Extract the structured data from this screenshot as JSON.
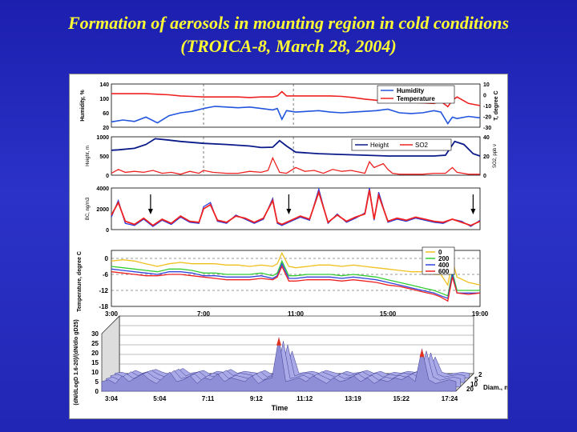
{
  "slide": {
    "title_line1": "Formation of aerosols in mounting region in cold conditions",
    "title_line2": "(TROICA-8, March 28, 2004)"
  },
  "colors": {
    "background": "#2228b8",
    "title": "#ffff33"
  },
  "chart_data": [
    {
      "type": "line",
      "name": "humidity-temperature",
      "ylabel": "Humidity, %",
      "y2label": "T, degree C",
      "yticks": [
        "140",
        "100",
        "60",
        "20"
      ],
      "y2ticks": [
        "10",
        "0",
        "-10",
        "-20",
        "-30"
      ],
      "ylim": [
        20,
        140
      ],
      "y2lim": [
        -30,
        10
      ],
      "xlim": [
        3,
        19
      ],
      "legend_position": "top-right",
      "series": [
        {
          "name": "Humidity",
          "axis": "left",
          "color": "#2255dd",
          "x": [
            3,
            3.5,
            4,
            4.5,
            5,
            5.5,
            6,
            6.5,
            7,
            7.5,
            8,
            8.5,
            9,
            9.5,
            10,
            10.2,
            10.4,
            10.6,
            11,
            11.5,
            12,
            12.5,
            13,
            13.5,
            14,
            14.5,
            15,
            15.5,
            16,
            16.5,
            17,
            17.3,
            17.6,
            17.8,
            18,
            18.5,
            19
          ],
          "y": [
            35,
            40,
            36,
            48,
            32,
            52,
            60,
            64,
            72,
            78,
            76,
            74,
            76,
            72,
            68,
            72,
            42,
            66,
            62,
            64,
            66,
            62,
            60,
            62,
            64,
            66,
            70,
            60,
            58,
            60,
            66,
            62,
            30,
            48,
            44,
            50,
            46
          ]
        },
        {
          "name": "Temperature",
          "axis": "right",
          "color": "#ee2222",
          "x": [
            3,
            3.5,
            4,
            4.5,
            5,
            5.5,
            6,
            6.5,
            7,
            7.5,
            8,
            8.5,
            9,
            9.5,
            10,
            10.2,
            10.4,
            10.6,
            11,
            11.5,
            12,
            12.5,
            13,
            13.5,
            14,
            14.5,
            15,
            15.5,
            16,
            16.5,
            17,
            17.3,
            17.6,
            17.8,
            18,
            18.5,
            19
          ],
          "y": [
            1,
            1,
            1,
            1,
            0.5,
            0,
            -1,
            -1.5,
            -2,
            -2,
            -2,
            -2,
            -2.5,
            -2,
            -2,
            -1,
            3,
            -1,
            -1,
            -1,
            -1,
            -1,
            -1.5,
            -2.5,
            -4,
            -5,
            -6.5,
            -7,
            -7,
            -7.5,
            -8,
            -6,
            -11,
            -5,
            -2,
            -8,
            -10
          ]
        }
      ]
    },
    {
      "type": "line",
      "name": "height-so2",
      "ylabel": "Height, m",
      "y2label": "SO2, ppb v",
      "yticks": [
        "1000",
        "500",
        "0"
      ],
      "y2ticks": [
        "40",
        "20",
        "0"
      ],
      "ylim": [
        0,
        1000
      ],
      "y2lim": [
        0,
        40
      ],
      "xlim": [
        3,
        19
      ],
      "legend_position": "top-right",
      "series": [
        {
          "name": "Height",
          "axis": "left",
          "color": "#0a1a88",
          "x": [
            3,
            3.3,
            4,
            4.5,
            4.9,
            5.4,
            6,
            7,
            8,
            9,
            9.5,
            10,
            10.3,
            10.6,
            11,
            12,
            13,
            14,
            15,
            16,
            17,
            17.5,
            17.9,
            18.3,
            18.7,
            19
          ],
          "y": [
            650,
            660,
            700,
            800,
            950,
            920,
            880,
            830,
            800,
            760,
            720,
            730,
            900,
            760,
            600,
            560,
            540,
            520,
            500,
            500,
            500,
            520,
            880,
            800,
            560,
            500
          ]
        },
        {
          "name": "SO2",
          "axis": "right",
          "color": "#ee2222",
          "x": [
            3,
            3.3,
            3.6,
            4,
            4.4,
            4.8,
            5.2,
            5.6,
            6,
            6.4,
            6.8,
            7,
            7.4,
            8,
            8.5,
            9,
            9.5,
            9.8,
            10,
            10.3,
            10.6,
            11,
            11.4,
            11.8,
            12.2,
            12.6,
            13,
            13.4,
            13.8,
            14,
            14.2,
            14.4,
            14.6,
            14.8,
            15,
            15.2,
            15.5,
            16,
            16.5,
            17,
            17.5,
            17.8,
            18,
            18.5,
            19
          ],
          "y": [
            2,
            6,
            3,
            4,
            3,
            5,
            2,
            3,
            1,
            4,
            2,
            5,
            3,
            2,
            2,
            4,
            3,
            5,
            18,
            3,
            2,
            8,
            4,
            5,
            2,
            6,
            4,
            5,
            3,
            2,
            14,
            8,
            10,
            12,
            6,
            2,
            1,
            1,
            1,
            2,
            2,
            8,
            3,
            1,
            1
          ]
        }
      ]
    },
    {
      "type": "line",
      "name": "black-carbon",
      "ylabel": "BC, ng/m3",
      "yticks": [
        "4000",
        "2000",
        "0"
      ],
      "ylim": [
        0,
        4000
      ],
      "xlim": [
        3,
        19
      ],
      "annotations": [
        "arrow",
        "arrow",
        "arrow"
      ],
      "series": [
        {
          "name": "",
          "color": "#2233dd",
          "x": [
            3,
            3.3,
            3.6,
            4,
            4.4,
            4.8,
            5.2,
            5.6,
            6,
            6.4,
            6.8,
            7,
            7.3,
            7.6,
            8,
            8.4,
            8.8,
            9.2,
            9.6,
            10,
            10.2,
            10.4,
            10.8,
            11.2,
            11.6,
            12,
            12.4,
            12.8,
            13.2,
            13.6,
            14,
            14.2,
            14.4,
            14.6,
            15,
            15.4,
            15.8,
            16.2,
            16.6,
            17,
            17.4,
            17.8,
            18.2,
            18.6,
            19
          ],
          "y": [
            1200,
            2800,
            600,
            400,
            1000,
            300,
            900,
            500,
            1200,
            700,
            600,
            2200,
            2600,
            800,
            600,
            1400,
            1000,
            600,
            1000,
            3000,
            600,
            400,
            800,
            1200,
            900,
            3900,
            600,
            1500,
            700,
            1100,
            1600,
            4000,
            900,
            3600,
            700,
            1000,
            800,
            1100,
            900,
            700,
            600,
            1000,
            800,
            300,
            900
          ]
        },
        {
          "name": "",
          "color": "#ee2222",
          "x": [
            3,
            3.3,
            3.6,
            4,
            4.4,
            4.8,
            5.2,
            5.6,
            6,
            6.4,
            6.8,
            7,
            7.3,
            7.6,
            8,
            8.4,
            8.8,
            9.2,
            9.6,
            10,
            10.2,
            10.4,
            10.8,
            11.2,
            11.6,
            12,
            12.4,
            12.8,
            13.2,
            13.6,
            14,
            14.2,
            14.4,
            14.6,
            15,
            15.4,
            15.8,
            16.2,
            16.6,
            17,
            17.4,
            17.8,
            18.2,
            18.6,
            19
          ],
          "y": [
            1400,
            2600,
            800,
            500,
            1100,
            400,
            1000,
            600,
            1300,
            800,
            700,
            2000,
            2400,
            900,
            700,
            1300,
            1100,
            700,
            1100,
            2800,
            700,
            500,
            900,
            1300,
            1000,
            3600,
            700,
            1400,
            800,
            1200,
            1500,
            3800,
            1000,
            3300,
            800,
            1100,
            900,
            1200,
            1000,
            800,
            700,
            1000,
            700,
            400,
            800
          ]
        }
      ]
    },
    {
      "type": "line",
      "name": "temperature-height-levels",
      "xlabel": "",
      "ylabel": "Temperature, degree C",
      "yticks": [
        "0",
        "-6",
        "-12",
        "-18"
      ],
      "ylim": [
        -18,
        3
      ],
      "xticks": [
        "3:00",
        "7:00",
        "11:00",
        "15:00",
        "19:00"
      ],
      "xlim": [
        3,
        19
      ],
      "legend_position": "top-right",
      "series": [
        {
          "name": "0",
          "color": "#f0c020",
          "x": [
            3,
            3.5,
            4,
            4.5,
            5,
            5.5,
            6,
            6.5,
            7,
            7.5,
            8,
            8.5,
            9,
            9.5,
            10,
            10.2,
            10.4,
            10.7,
            11,
            11.5,
            12,
            12.5,
            13,
            13.5,
            14,
            14.5,
            15,
            15.5,
            16,
            16.5,
            17,
            17.3,
            17.6,
            17.8,
            18,
            18.5,
            19
          ],
          "y": [
            -1,
            -0.5,
            -1,
            -2,
            -3,
            -2,
            -1.5,
            -2,
            -2,
            -2,
            -2.5,
            -2.5,
            -3,
            -2.5,
            -3,
            -2,
            2,
            -3,
            -3.5,
            -3,
            -2.5,
            -2.5,
            -3,
            -2.5,
            -3,
            -3.5,
            -4,
            -4.5,
            -5,
            -5,
            -6,
            -6,
            -10,
            -1,
            -7,
            -9,
            -10
          ]
        },
        {
          "name": "200",
          "color": "#33cc33",
          "x": [
            3,
            3.5,
            4,
            4.5,
            5,
            5.5,
            6,
            6.5,
            7,
            7.5,
            8,
            8.5,
            9,
            9.5,
            10,
            10.2,
            10.4,
            10.7,
            11,
            11.5,
            12,
            12.5,
            13,
            13.5,
            14,
            14.5,
            15,
            15.5,
            16,
            16.5,
            17,
            17.3,
            17.6,
            17.8,
            18,
            18.5,
            19
          ],
          "y": [
            -3,
            -3.5,
            -4,
            -4.5,
            -5,
            -4,
            -4,
            -4.5,
            -5.5,
            -5.5,
            -6,
            -6,
            -6,
            -5.5,
            -6.5,
            -5.5,
            -1,
            -6.5,
            -6.5,
            -6,
            -6,
            -6,
            -6.5,
            -6,
            -6.5,
            -7,
            -8,
            -9,
            -10,
            -11,
            -12,
            -13,
            -14,
            -5,
            -12,
            -12,
            -12
          ]
        },
        {
          "name": "400",
          "color": "#3344dd",
          "x": [
            3,
            3.5,
            4,
            4.5,
            5,
            5.5,
            6,
            6.5,
            7,
            7.5,
            8,
            8.5,
            9,
            9.5,
            10,
            10.2,
            10.4,
            10.7,
            11,
            11.5,
            12,
            12.5,
            13,
            13.5,
            14,
            14.5,
            15,
            15.5,
            16,
            16.5,
            17,
            17.3,
            17.6,
            17.8,
            18,
            18.5,
            19
          ],
          "y": [
            -4,
            -4.5,
            -5,
            -5.5,
            -6,
            -5,
            -5,
            -5.5,
            -6.5,
            -6.5,
            -7,
            -7,
            -7,
            -6.5,
            -7.5,
            -6.5,
            -2,
            -7.5,
            -7.5,
            -7,
            -7,
            -7,
            -7.5,
            -7,
            -7.5,
            -8,
            -9,
            -10,
            -11,
            -12,
            -13,
            -14,
            -15,
            -6,
            -13,
            -13,
            -13
          ]
        },
        {
          "name": "600",
          "color": "#ee2222",
          "x": [
            3,
            3.5,
            4,
            4.5,
            5,
            5.5,
            6,
            6.5,
            7,
            7.5,
            8,
            8.5,
            9,
            9.5,
            10,
            10.2,
            10.4,
            10.7,
            11,
            11.5,
            12,
            12.5,
            13,
            13.5,
            14,
            14.5,
            15,
            15.5,
            16,
            16.5,
            17,
            17.3,
            17.6,
            17.8,
            18,
            18.5,
            19
          ],
          "y": [
            -5,
            -5.5,
            -6,
            -6.5,
            -6.5,
            -6,
            -6,
            -6.5,
            -7,
            -7.5,
            -8,
            -8,
            -8,
            -7.5,
            -8,
            -7,
            -3,
            -8.5,
            -8.5,
            -8,
            -8,
            -8,
            -8.5,
            -8,
            -8.5,
            -9,
            -10,
            -10.5,
            -11.5,
            -12.5,
            -13.5,
            -14.5,
            -16,
            -7,
            -13,
            -13.5,
            -13
          ]
        }
      ]
    },
    {
      "type": "surface",
      "name": "size-distribution-3d",
      "xlabel": "Time",
      "ylabel": "(dN/dLogD 1.6-20)/(dN/dlo gD25)",
      "zlabel": "Diam., nm",
      "yticks": [
        "30",
        "25",
        "20",
        "15",
        "10",
        "5",
        "0"
      ],
      "ylim": [
        0,
        30
      ],
      "xticks": [
        "3:04",
        "5:04",
        "7:11",
        "9:12",
        "11:12",
        "13:19",
        "15:22",
        "17:24"
      ],
      "depth_ticks": [
        "2",
        "5",
        "10",
        "20"
      ],
      "peaks": [
        {
          "time": "10:40",
          "value": 28
        },
        {
          "time": "17:50",
          "value": 22
        }
      ],
      "baseline": [
        5,
        6,
        4,
        8,
        5,
        7,
        9,
        6,
        4,
        7,
        10,
        5,
        6,
        8,
        4,
        7,
        6,
        9,
        5,
        7,
        6,
        5,
        8,
        4,
        6,
        7,
        28,
        5,
        6,
        7,
        5,
        8,
        6,
        4,
        7,
        5,
        6,
        8,
        5,
        7,
        4,
        6,
        5,
        7,
        6,
        8,
        5,
        22,
        6,
        4,
        5,
        6,
        5
      ]
    }
  ]
}
